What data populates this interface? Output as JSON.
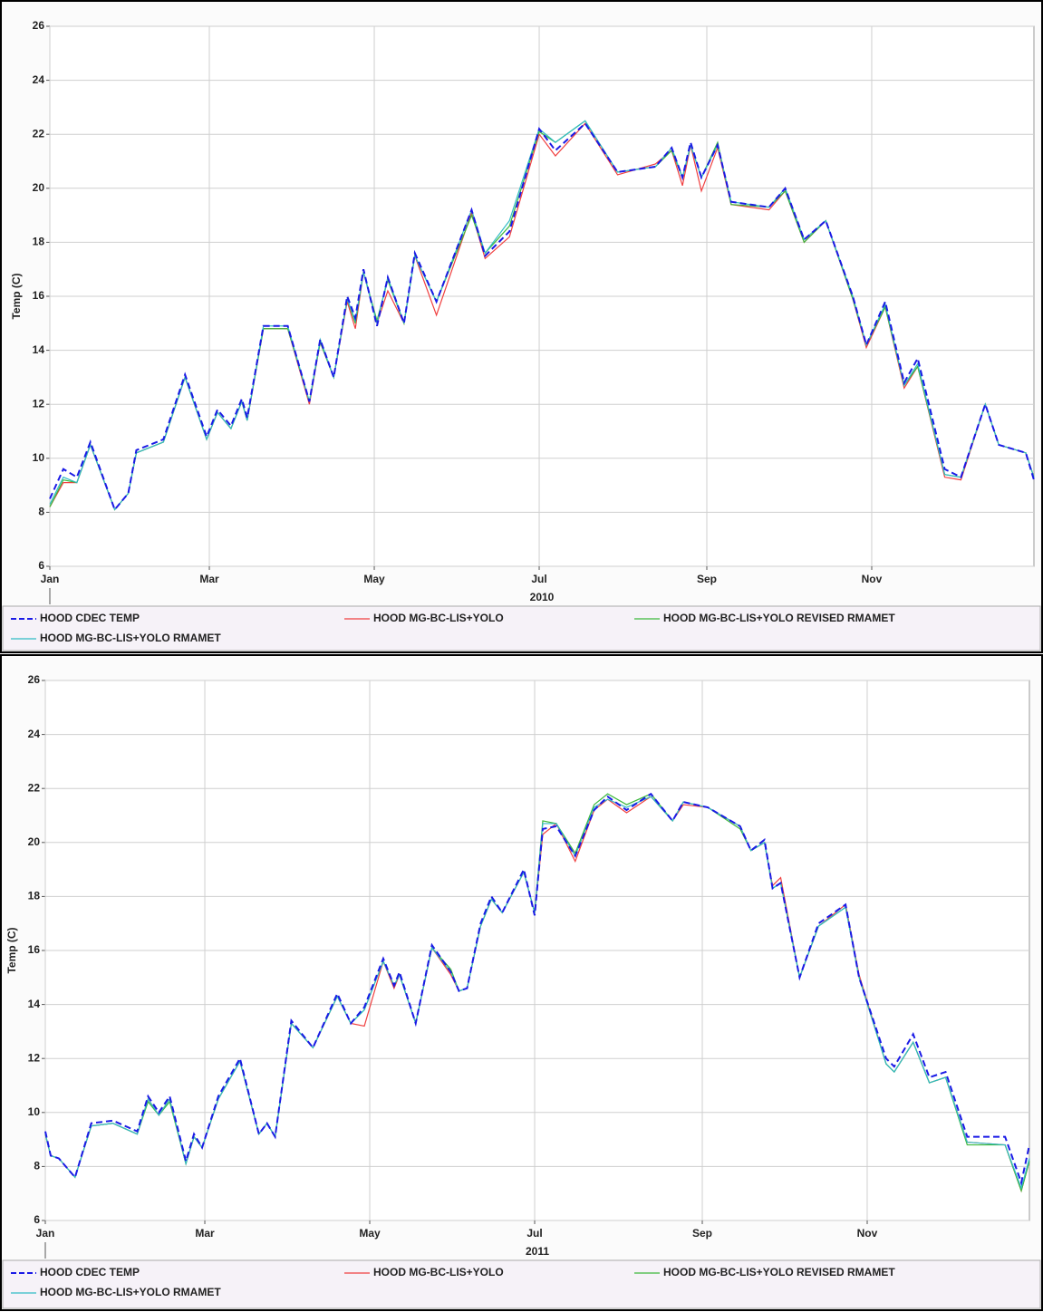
{
  "chart_data": [
    {
      "type": "line",
      "x_label": "2010",
      "y_label": "Temp (C)",
      "xlim": [
        0,
        364
      ],
      "ylim": [
        6,
        26
      ],
      "yticks": [
        6,
        8,
        10,
        12,
        14,
        16,
        18,
        20,
        22,
        24,
        26
      ],
      "xticks": [
        {
          "value": 0,
          "label": "Jan"
        },
        {
          "value": 59,
          "label": "Mar"
        },
        {
          "value": 120,
          "label": "May"
        },
        {
          "value": 181,
          "label": "Jul"
        },
        {
          "value": 243,
          "label": "Sep"
        },
        {
          "value": 304,
          "label": "Nov"
        }
      ],
      "grid": true,
      "x": [
        0,
        5,
        10,
        15,
        24,
        29,
        32,
        42,
        50,
        58,
        62,
        67,
        71,
        73,
        79,
        88,
        96,
        100,
        105,
        110,
        113,
        116,
        121,
        125,
        131,
        135,
        143,
        156,
        161,
        170,
        181,
        187,
        198,
        210,
        224,
        230,
        234,
        237,
        241,
        247,
        252,
        266,
        272,
        279,
        287,
        297,
        302,
        309,
        316,
        321,
        331,
        337,
        346,
        351,
        361,
        364
      ],
      "series": [
        {
          "name": "HOOD CDEC TEMP",
          "color": "#1a1ae6",
          "dashed": true,
          "values": [
            8.5,
            9.6,
            9.3,
            10.6,
            8.1,
            8.7,
            10.3,
            10.7,
            13.1,
            10.8,
            11.8,
            11.2,
            12.2,
            11.5,
            14.9,
            14.9,
            12.1,
            14.4,
            13.0,
            16.0,
            15.2,
            17.0,
            14.9,
            16.7,
            15.0,
            17.6,
            15.8,
            19.2,
            17.5,
            18.4,
            22.2,
            21.4,
            22.4,
            20.6,
            20.8,
            21.5,
            20.4,
            21.7,
            20.4,
            21.6,
            19.5,
            19.3,
            20.0,
            18.1,
            18.8,
            16.0,
            14.2,
            15.8,
            12.8,
            13.7,
            9.6,
            9.3,
            12.0,
            10.5,
            10.2,
            9.2
          ]
        },
        {
          "name": "HOOD MG-BC-LIS+YOLO",
          "color": "#f04040",
          "values": [
            8.2,
            9.1,
            9.1,
            10.5,
            8.1,
            8.7,
            10.2,
            10.6,
            13.0,
            10.7,
            11.7,
            11.1,
            12.1,
            11.4,
            14.8,
            14.8,
            12.0,
            14.3,
            13.0,
            15.8,
            14.8,
            16.9,
            15.0,
            16.2,
            15.0,
            17.5,
            15.3,
            19.1,
            17.4,
            18.2,
            22.0,
            21.2,
            22.4,
            20.5,
            20.9,
            21.4,
            20.1,
            21.6,
            19.9,
            21.5,
            19.4,
            19.2,
            19.9,
            18.0,
            18.8,
            15.9,
            14.1,
            15.6,
            12.6,
            13.4,
            9.3,
            9.2,
            12.0,
            10.5,
            10.2,
            9.3
          ]
        },
        {
          "name": "HOOD MG-BC-LIS+YOLO REVISED RMAMET",
          "color": "#3cb83c",
          "values": [
            8.2,
            9.2,
            9.1,
            10.5,
            8.1,
            8.7,
            10.2,
            10.6,
            13.0,
            10.7,
            11.7,
            11.1,
            12.1,
            11.4,
            14.8,
            14.8,
            12.1,
            14.3,
            13.0,
            15.9,
            15.0,
            16.9,
            15.1,
            16.6,
            15.0,
            17.5,
            15.8,
            19.0,
            17.6,
            18.6,
            22.1,
            21.7,
            22.5,
            20.6,
            20.8,
            21.4,
            20.4,
            21.6,
            20.4,
            21.7,
            19.4,
            19.3,
            19.9,
            18.0,
            18.8,
            15.9,
            14.2,
            15.6,
            12.7,
            13.4,
            9.4,
            9.3,
            12.0,
            10.5,
            10.2,
            9.3
          ]
        },
        {
          "name": "HOOD MG-BC-LIS+YOLO RMAMET",
          "color": "#30bcc4",
          "values": [
            8.3,
            9.3,
            9.1,
            10.5,
            8.1,
            8.7,
            10.2,
            10.6,
            13.0,
            10.7,
            11.7,
            11.1,
            12.1,
            11.4,
            14.9,
            14.9,
            12.1,
            14.4,
            13.0,
            15.9,
            15.1,
            16.9,
            15.0,
            16.7,
            15.0,
            17.5,
            15.8,
            19.2,
            17.6,
            18.8,
            22.2,
            21.7,
            22.5,
            20.6,
            20.8,
            21.5,
            20.4,
            21.6,
            20.4,
            21.6,
            19.5,
            19.3,
            20.0,
            18.1,
            18.8,
            16.0,
            14.2,
            15.7,
            12.7,
            13.5,
            9.4,
            9.3,
            12.0,
            10.5,
            10.2,
            9.3
          ]
        }
      ]
    },
    {
      "type": "line",
      "x_label": "2011",
      "y_label": "Temp (C)",
      "xlim": [
        0,
        364
      ],
      "ylim": [
        6,
        26
      ],
      "yticks": [
        6,
        8,
        10,
        12,
        14,
        16,
        18,
        20,
        22,
        24,
        26
      ],
      "xticks": [
        {
          "value": 0,
          "label": "Jan"
        },
        {
          "value": 59,
          "label": "Mar"
        },
        {
          "value": 120,
          "label": "May"
        },
        {
          "value": 181,
          "label": "Jul"
        },
        {
          "value": 243,
          "label": "Sep"
        },
        {
          "value": 304,
          "label": "Nov"
        }
      ],
      "grid": true,
      "x": [
        0,
        2,
        5,
        11,
        17,
        25,
        34,
        38,
        42,
        46,
        52,
        55,
        58,
        64,
        72,
        79,
        82,
        85,
        91,
        99,
        108,
        113,
        118,
        125,
        129,
        131,
        137,
        143,
        150,
        153,
        156,
        161,
        165,
        169,
        177,
        181,
        184,
        189,
        196,
        203,
        208,
        215,
        224,
        232,
        236,
        245,
        257,
        261,
        266,
        269,
        272,
        279,
        286,
        296,
        301,
        311,
        314,
        321,
        327,
        333,
        341,
        355,
        361,
        364
      ],
      "series": [
        {
          "name": "HOOD CDEC TEMP",
          "color": "#1a1ae6",
          "dashed": true,
          "values": [
            9.3,
            8.4,
            8.3,
            7.6,
            9.6,
            9.7,
            9.3,
            10.6,
            10.0,
            10.6,
            8.2,
            9.2,
            8.7,
            10.6,
            12.0,
            9.2,
            9.6,
            9.1,
            13.4,
            12.4,
            14.4,
            13.3,
            13.9,
            15.7,
            14.7,
            15.2,
            13.3,
            16.2,
            15.2,
            14.5,
            14.6,
            17.0,
            18.0,
            17.4,
            19.0,
            17.3,
            20.5,
            20.6,
            19.5,
            21.2,
            21.7,
            21.2,
            21.8,
            20.8,
            21.5,
            21.3,
            20.6,
            19.7,
            20.1,
            18.3,
            18.5,
            15.0,
            17.0,
            17.7,
            15.0,
            12.0,
            11.7,
            12.9,
            11.3,
            11.5,
            9.1,
            9.1,
            7.4,
            8.8
          ]
        },
        {
          "name": "HOOD MG-BC-LIS+YOLO",
          "color": "#f04040",
          "values": [
            9.2,
            8.4,
            8.3,
            7.6,
            9.5,
            9.6,
            9.2,
            10.5,
            9.9,
            10.5,
            8.1,
            9.1,
            8.7,
            10.5,
            11.9,
            9.2,
            9.6,
            9.1,
            13.3,
            12.4,
            14.3,
            13.3,
            13.2,
            15.6,
            14.6,
            15.1,
            13.3,
            16.1,
            15.1,
            14.5,
            14.6,
            16.9,
            17.9,
            17.4,
            18.9,
            17.4,
            20.3,
            20.7,
            19.3,
            21.2,
            21.6,
            21.1,
            21.7,
            20.8,
            21.4,
            21.3,
            20.6,
            19.7,
            20.0,
            18.4,
            18.7,
            15.0,
            16.9,
            17.7,
            15.1,
            11.8,
            11.5,
            12.6,
            11.1,
            11.3,
            8.9,
            8.8,
            7.1,
            8.2
          ]
        },
        {
          "name": "HOOD MG-BC-LIS+YOLO REVISED RMAMET",
          "color": "#3cb83c",
          "values": [
            9.2,
            8.4,
            8.3,
            7.6,
            9.5,
            9.6,
            9.2,
            10.4,
            9.9,
            10.4,
            8.1,
            9.1,
            8.7,
            10.5,
            11.9,
            9.2,
            9.6,
            9.1,
            13.3,
            12.4,
            14.3,
            13.3,
            13.8,
            15.6,
            14.7,
            15.1,
            13.3,
            16.1,
            15.3,
            14.5,
            14.6,
            16.9,
            17.9,
            17.4,
            18.9,
            17.4,
            20.8,
            20.7,
            19.6,
            21.4,
            21.8,
            21.4,
            21.8,
            20.8,
            21.5,
            21.3,
            20.5,
            19.7,
            20.0,
            18.3,
            18.5,
            15.0,
            16.9,
            17.6,
            15.0,
            11.8,
            11.5,
            12.6,
            11.1,
            11.3,
            8.8,
            8.8,
            7.1,
            8.2
          ]
        },
        {
          "name": "HOOD MG-BC-LIS+YOLO RMAMET",
          "color": "#30bcc4",
          "values": [
            9.2,
            8.4,
            8.3,
            7.6,
            9.5,
            9.6,
            9.2,
            10.5,
            9.9,
            10.5,
            8.1,
            9.1,
            8.7,
            10.5,
            11.9,
            9.2,
            9.6,
            9.1,
            13.3,
            12.4,
            14.3,
            13.3,
            13.8,
            15.6,
            14.7,
            15.1,
            13.3,
            16.1,
            15.2,
            14.5,
            14.6,
            16.9,
            17.9,
            17.4,
            18.9,
            17.4,
            20.7,
            20.7,
            19.5,
            21.3,
            21.6,
            21.3,
            21.7,
            20.8,
            21.5,
            21.3,
            20.6,
            19.7,
            20.0,
            18.3,
            18.5,
            15.0,
            16.9,
            17.6,
            15.0,
            11.8,
            11.5,
            12.6,
            11.1,
            11.3,
            8.9,
            8.8,
            7.2,
            8.3
          ]
        }
      ]
    }
  ]
}
